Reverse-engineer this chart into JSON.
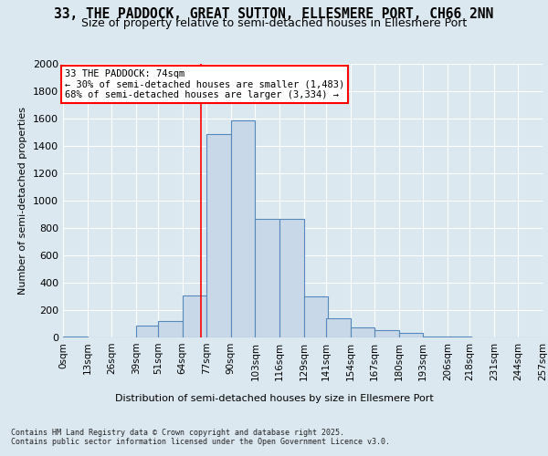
{
  "title1": "33, THE PADDOCK, GREAT SUTTON, ELLESMERE PORT, CH66 2NN",
  "title2": "Size of property relative to semi-detached houses in Ellesmere Port",
  "xlabel": "Distribution of semi-detached houses by size in Ellesmere Port",
  "ylabel": "Number of semi-detached properties",
  "footnote": "Contains HM Land Registry data © Crown copyright and database right 2025.\nContains public sector information licensed under the Open Government Licence v3.0.",
  "bin_labels": [
    "0sqm",
    "13sqm",
    "26sqm",
    "39sqm",
    "51sqm",
    "64sqm",
    "77sqm",
    "90sqm",
    "103sqm",
    "116sqm",
    "129sqm",
    "141sqm",
    "154sqm",
    "167sqm",
    "180sqm",
    "193sqm",
    "206sqm",
    "218sqm",
    "231sqm",
    "244sqm",
    "257sqm"
  ],
  "bin_edges": [
    0,
    13,
    26,
    39,
    51,
    64,
    77,
    90,
    103,
    116,
    129,
    141,
    154,
    167,
    180,
    193,
    206,
    218,
    231,
    244,
    257
  ],
  "bar_heights": [
    5,
    0,
    0,
    90,
    120,
    310,
    1490,
    1590,
    870,
    870,
    300,
    140,
    75,
    55,
    35,
    10,
    10,
    0,
    0,
    0
  ],
  "bar_color": "#c8d8e8",
  "bar_edge_color": "#5588bb",
  "bar_linewidth": 0.8,
  "red_line_x": 74,
  "ylim": [
    0,
    2000
  ],
  "yticks": [
    0,
    200,
    400,
    600,
    800,
    1000,
    1200,
    1400,
    1600,
    1800,
    2000
  ],
  "annotation_title": "33 THE PADDOCK: 74sqm",
  "annotation_line1": "← 30% of semi-detached houses are smaller (1,483)",
  "annotation_line2": "68% of semi-detached houses are larger (3,334) →",
  "background_color": "#dce8f0",
  "grid_color": "#ffffff",
  "title_fontsize": 10.5,
  "subtitle_fontsize": 9.0
}
